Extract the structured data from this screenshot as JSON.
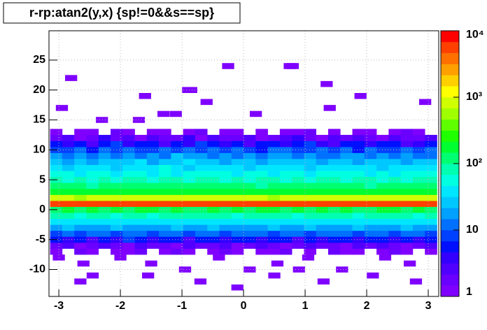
{
  "chart_data": {
    "type": "heatmap",
    "title": "r-rp:atan2(y,x) {sp!=0&&s==sp}",
    "xlim": [
      -3.16,
      3.17
    ],
    "ylim": [
      -14.5,
      29.9
    ],
    "xticks": [
      -3,
      -2,
      -1,
      0,
      1,
      2,
      3
    ],
    "yticks": [
      -10,
      -5,
      0,
      5,
      10,
      15,
      20,
      25
    ],
    "grid": true,
    "zlog": true,
    "zlim": [
      1,
      10000
    ],
    "zticks": [
      1,
      10,
      {
        "value": 100,
        "label": "10²"
      },
      {
        "value": 1000,
        "label": "10³"
      },
      {
        "value": 10000,
        "label": "10⁴"
      }
    ],
    "palette": [
      "#7f00ff",
      "#6a00ff",
      "#5000ff",
      "#3300ff",
      "#0010ff",
      "#0040ff",
      "#0070ff",
      "#00a0ff",
      "#00c8ff",
      "#00e6ff",
      "#00ffe0",
      "#00ffb0",
      "#00ff70",
      "#00ff30",
      "#20ff00",
      "#60ff00",
      "#a0ff00",
      "#d0ff00",
      "#ffff00",
      "#ffd000",
      "#ffa000",
      "#ff7000",
      "#ff4000",
      "#ff0000"
    ],
    "x_edges": [
      -3.1416,
      -2.9452,
      -2.7489,
      -2.5525,
      -2.3562,
      -2.1598,
      -1.9635,
      -1.7671,
      -1.5708,
      -1.3744,
      -1.1781,
      -0.9817,
      -0.7854,
      -0.589,
      -0.3927,
      -0.1963,
      0,
      0.1963,
      0.3927,
      0.589,
      0.7854,
      0.9817,
      1.1781,
      1.3744,
      1.5708,
      1.7671,
      1.9635,
      2.1598,
      2.3562,
      2.5525,
      2.7489,
      2.9452,
      3.1416
    ],
    "y_edges": [
      -7.5,
      -6.5,
      -5.5,
      -4.5,
      -3.5,
      -2.5,
      -1.5,
      -0.5,
      0.5,
      1.5,
      2.5,
      3.5,
      4.5,
      5.5,
      6.5,
      7.5,
      8.5,
      9.5,
      10.5,
      11.5,
      12.5,
      13.5
    ],
    "z": [
      [
        1,
        0,
        2,
        1,
        0,
        1,
        1,
        2,
        0,
        1,
        2,
        1,
        0,
        1,
        2,
        1,
        0,
        1,
        1,
        2,
        0,
        1,
        0,
        2,
        1,
        1,
        0,
        1,
        2,
        1,
        0,
        1
      ],
      [
        2,
        3,
        1,
        2,
        3,
        2,
        1,
        3,
        2,
        2,
        1,
        3,
        2,
        2,
        3,
        1,
        2,
        3,
        2,
        1,
        2,
        3,
        2,
        2,
        1,
        3,
        2,
        3,
        2,
        1,
        2,
        3
      ],
      [
        5,
        4,
        6,
        3,
        5,
        4,
        7,
        5,
        4,
        6,
        5,
        3,
        5,
        6,
        4,
        5,
        5,
        4,
        6,
        5,
        3,
        5,
        4,
        6,
        5,
        4,
        5,
        6,
        4,
        5,
        4,
        6
      ],
      [
        9,
        11,
        8,
        12,
        10,
        9,
        11,
        13,
        9,
        10,
        12,
        8,
        11,
        10,
        9,
        12,
        10,
        11,
        9,
        12,
        10,
        8,
        11,
        10,
        12,
        9,
        11,
        10,
        8,
        12,
        10,
        9
      ],
      [
        18,
        22,
        16,
        20,
        19,
        24,
        17,
        21,
        20,
        18,
        23,
        19,
        17,
        22,
        20,
        18,
        21,
        19,
        24,
        17,
        20,
        22,
        18,
        19,
        21,
        23,
        17,
        20,
        19,
        22,
        18,
        21
      ],
      [
        35,
        40,
        32,
        38,
        36,
        42,
        34,
        39,
        37,
        33,
        41,
        36,
        38,
        35,
        40,
        34,
        37,
        39,
        33,
        42,
        36,
        38,
        35,
        40,
        34,
        39,
        37,
        36,
        41,
        33,
        38,
        35
      ],
      [
        70,
        75,
        65,
        80,
        72,
        68,
        78,
        74,
        66,
        79,
        71,
        73,
        69,
        77,
        75,
        67,
        72,
        80,
        70,
        74,
        68,
        76,
        73,
        71,
        79,
        65,
        72,
        77,
        70,
        74,
        68,
        75
      ],
      [
        140,
        150,
        135,
        160,
        145,
        155,
        138,
        148,
        152,
        142,
        158,
        146,
        137,
        150,
        144,
        156,
        141,
        153,
        147,
        139,
        157,
        143,
        149,
        136,
        154,
        145,
        140,
        151,
        148,
        143,
        155,
        138
      ],
      [
        6000,
        6200,
        5800,
        6400,
        6100,
        5900,
        6300,
        6000,
        6150,
        5850,
        6250,
        6050,
        5950,
        6350,
        6100,
        5900,
        6200,
        6000,
        6300,
        5800,
        6100,
        6250,
        5950,
        6050,
        6150,
        5900,
        6400,
        6000,
        6100,
        5850,
        6200,
        6050
      ],
      [
        700,
        750,
        680,
        820,
        720,
        760,
        690,
        800,
        740,
        710,
        780,
        730,
        700,
        760,
        720,
        790,
        710,
        750,
        680,
        770,
        730,
        700,
        760,
        740,
        690,
        800,
        720,
        750,
        710,
        780,
        700,
        740
      ],
      [
        160,
        170,
        150,
        180,
        165,
        175,
        155,
        172,
        168,
        158,
        182,
        162,
        170,
        150,
        176,
        164,
        172,
        158,
        180,
        166,
        154,
        174,
        160,
        170,
        152,
        178,
        165,
        160,
        172,
        156,
        168,
        162
      ],
      [
        110,
        105,
        120,
        98,
        115,
        108,
        125,
        102,
        118,
        112,
        100,
        122,
        106,
        116,
        110,
        104,
        120,
        96,
        114,
        108,
        124,
        100,
        118,
        110,
        106,
        120,
        98,
        114,
        108,
        116,
        104,
        112
      ],
      [
        70,
        65,
        78,
        62,
        75,
        68,
        80,
        72,
        66,
        74,
        70,
        64,
        78,
        72,
        68,
        82,
        66,
        74,
        70,
        62,
        76,
        68,
        72,
        80,
        64,
        70,
        76,
        66,
        72,
        68,
        74,
        70
      ],
      [
        48,
        55,
        42,
        60,
        50,
        45,
        58,
        52,
        46,
        56,
        44,
        62,
        50,
        48,
        54,
        42,
        58,
        50,
        46,
        60,
        52,
        44,
        56,
        48,
        50,
        54,
        42,
        58,
        46,
        52,
        48,
        56
      ],
      [
        35,
        28,
        40,
        32,
        45,
        30,
        38,
        42,
        33,
        48,
        36,
        30,
        44,
        38,
        32,
        40,
        30,
        46,
        36,
        34,
        42,
        28,
        38,
        44,
        32,
        36,
        40,
        30,
        42,
        34,
        38,
        32
      ],
      [
        25,
        20,
        28,
        18,
        30,
        22,
        26,
        32,
        20,
        28,
        24,
        35,
        22,
        26,
        20,
        30,
        24,
        18,
        28,
        26,
        22,
        30,
        20,
        24,
        28,
        18,
        26,
        22,
        30,
        20,
        24,
        26
      ],
      [
        15,
        12,
        18,
        10,
        16,
        14,
        20,
        12,
        17,
        13,
        22,
        15,
        18,
        12,
        16,
        14,
        19,
        11,
        15,
        17,
        13,
        18,
        14,
        12,
        16,
        19,
        11,
        15,
        13,
        17,
        12,
        14
      ],
      [
        9,
        7,
        11,
        6,
        10,
        8,
        12,
        9,
        7,
        11,
        8,
        13,
        9,
        10,
        7,
        11,
        8,
        6,
        10,
        12,
        9,
        7,
        11,
        8,
        10,
        6,
        12,
        9,
        8,
        11,
        7,
        10
      ],
      [
        5,
        4,
        6,
        3,
        5,
        7,
        4,
        6,
        5,
        3,
        6,
        4,
        7,
        5,
        4,
        6,
        3,
        5,
        6,
        4,
        5,
        7,
        4,
        3,
        6,
        5,
        4,
        6,
        5,
        3,
        4,
        5
      ],
      [
        2,
        3,
        1,
        2,
        4,
        2,
        3,
        1,
        3,
        2,
        2,
        4,
        1,
        3,
        2,
        2,
        3,
        1,
        2,
        3,
        4,
        2,
        1,
        3,
        2,
        3,
        2,
        1,
        3,
        2,
        2,
        3
      ],
      [
        1,
        0,
        1,
        1,
        0,
        2,
        1,
        0,
        1,
        1,
        0,
        1,
        2,
        0,
        1,
        1,
        0,
        1,
        0,
        1,
        1,
        2,
        0,
        1,
        0,
        1,
        1,
        0,
        1,
        2,
        1,
        0
      ]
    ],
    "outliers": {
      "x": [
        -2.95,
        -2.8,
        -1.6,
        -1.3,
        -0.9,
        -0.85,
        -0.25,
        0.75,
        0.8,
        1.35,
        1.9,
        2.95,
        -1.7,
        -1.1,
        -0.6,
        0.2,
        1.4,
        -2.3,
        -3.0,
        -2.6,
        -2.0,
        -1.5,
        -0.95,
        -0.4,
        0.1,
        0.55,
        1.05,
        1.6,
        2.3,
        2.7,
        -2.45,
        -1.55,
        -0.7,
        0.5,
        1.3,
        2.1,
        2.8,
        -2.65,
        -0.1,
        0.9
      ],
      "y": [
        17,
        22,
        19,
        16,
        20,
        20,
        24,
        24,
        24,
        21,
        19,
        18,
        15,
        16,
        18,
        16,
        17,
        15,
        -8,
        -9,
        -8,
        -9,
        -10,
        -8,
        -10,
        -9,
        -8,
        -10,
        -8,
        -9,
        -11,
        -11,
        -12,
        -11,
        -12,
        -11,
        -12,
        -12,
        -13,
        -10
      ],
      "values": [
        1,
        1,
        1,
        1,
        1,
        1,
        1,
        1,
        1,
        1,
        1,
        1,
        1,
        1,
        1,
        1,
        1,
        1,
        1,
        1,
        1,
        1,
        1,
        1,
        1,
        1,
        1,
        1,
        1,
        1,
        1,
        1,
        1,
        1,
        1,
        1,
        1,
        1,
        1,
        1
      ]
    }
  }
}
